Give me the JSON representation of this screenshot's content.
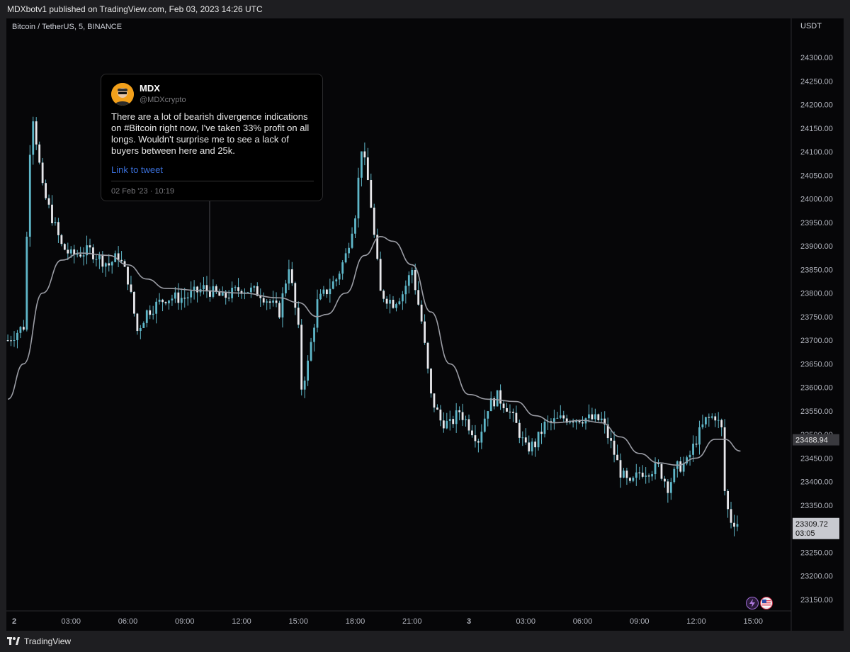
{
  "header": {
    "text": "MDXbotv1 published on TradingView.com, Feb 03, 2023 14:26 UTC"
  },
  "symbol": {
    "label": "Bitcoin / TetherUS, 5, BINANCE"
  },
  "tweet": {
    "name": "MDX",
    "handle": "@MDXcrypto",
    "body": "There are a lot of bearish divergence indications on #Bitcoin right now, I've taken 33% profit on all longs. Wouldn't surprise me to see a lack of buyers between here and 25k.",
    "link": "Link to tweet",
    "date": "02 Feb '23 · 10:19"
  },
  "footer": {
    "logo": "TradingView"
  },
  "colors": {
    "candle": "#5fb7c9",
    "ma_line": "#9a9ca4",
    "background": "#060608",
    "price_tag": "#c8cad0"
  },
  "chart_data": {
    "type": "candlestick",
    "title": "Bitcoin / TetherUS, 5, BINANCE",
    "y_axis_unit": "USDT",
    "ylim": [
      23125,
      24340
    ],
    "y_ticks": [
      "24300.00",
      "24250.00",
      "24200.00",
      "24150.00",
      "24100.00",
      "24050.00",
      "24000.00",
      "23950.00",
      "23900.00",
      "23850.00",
      "23800.00",
      "23750.00",
      "23700.00",
      "23650.00",
      "23600.00",
      "23550.00",
      "23500.00",
      "23450.00",
      "23400.00",
      "23350.00",
      "23300.00",
      "23250.00",
      "23200.00",
      "23150.00"
    ],
    "x_ticks": [
      {
        "label": "2",
        "time": "02-00:00",
        "bold": true
      },
      {
        "label": "03:00",
        "time": "02-03:00"
      },
      {
        "label": "06:00",
        "time": "02-06:00"
      },
      {
        "label": "09:00",
        "time": "02-09:00"
      },
      {
        "label": "12:00",
        "time": "02-12:00"
      },
      {
        "label": "15:00",
        "time": "02-15:00"
      },
      {
        "label": "18:00",
        "time": "02-18:00"
      },
      {
        "label": "21:00",
        "time": "02-21:00"
      },
      {
        "label": "3",
        "time": "03-00:00",
        "bold": true
      },
      {
        "label": "03:00",
        "time": "03-03:00"
      },
      {
        "label": "06:00",
        "time": "03-06:00"
      },
      {
        "label": "09:00",
        "time": "03-09:00"
      },
      {
        "label": "12:00",
        "time": "03-12:00"
      },
      {
        "label": "15:00",
        "time": "03-15:00"
      }
    ],
    "price_path": [
      [
        "01-23:40",
        23700
      ],
      [
        "02-00:30",
        23730
      ],
      [
        "02-00:55",
        24200
      ],
      [
        "02-01:05",
        24150
      ],
      [
        "02-01:30",
        24020
      ],
      [
        "02-02:30",
        23900
      ],
      [
        "02-03:00",
        23880
      ],
      [
        "02-04:00",
        23890
      ],
      [
        "02-05:00",
        23860
      ],
      [
        "02-05:30",
        23880
      ],
      [
        "02-06:00",
        23830
      ],
      [
        "02-06:30",
        23720
      ],
      [
        "02-07:00",
        23760
      ],
      [
        "02-08:00",
        23790
      ],
      [
        "02-09:00",
        23790
      ],
      [
        "02-10:00",
        23810
      ],
      [
        "02-10:19",
        23805
      ],
      [
        "02-11:00",
        23790
      ],
      [
        "02-12:00",
        23810
      ],
      [
        "02-13:00",
        23800
      ],
      [
        "02-14:00",
        23760
      ],
      [
        "02-14:30",
        23860
      ],
      [
        "02-15:00",
        23720
      ],
      [
        "02-15:10",
        23600
      ],
      [
        "02-15:30",
        23650
      ],
      [
        "02-16:00",
        23780
      ],
      [
        "02-17:00",
        23830
      ],
      [
        "02-17:30",
        23880
      ],
      [
        "02-18:00",
        23970
      ],
      [
        "02-18:20",
        24110
      ],
      [
        "02-18:45",
        24020
      ],
      [
        "02-19:00",
        23920
      ],
      [
        "02-19:20",
        23800
      ],
      [
        "02-20:00",
        23780
      ],
      [
        "02-20:30",
        23800
      ],
      [
        "02-21:00",
        23850
      ],
      [
        "02-21:30",
        23740
      ],
      [
        "02-22:00",
        23580
      ],
      [
        "02-22:30",
        23530
      ],
      [
        "02-23:00",
        23520
      ],
      [
        "02-23:30",
        23550
      ],
      [
        "03-00:30",
        23490
      ],
      [
        "03-01:00",
        23560
      ],
      [
        "03-01:30",
        23580
      ],
      [
        "03-02:00",
        23560
      ],
      [
        "03-02:30",
        23520
      ],
      [
        "03-03:00",
        23470
      ],
      [
        "03-03:30",
        23480
      ],
      [
        "03-04:00",
        23520
      ],
      [
        "03-05:00",
        23535
      ],
      [
        "03-06:00",
        23535
      ],
      [
        "03-07:00",
        23530
      ],
      [
        "03-07:30",
        23480
      ],
      [
        "03-08:00",
        23420
      ],
      [
        "03-08:30",
        23390
      ],
      [
        "03-09:00",
        23420
      ],
      [
        "03-10:00",
        23430
      ],
      [
        "03-10:30",
        23390
      ],
      [
        "03-11:00",
        23430
      ],
      [
        "03-11:30",
        23440
      ],
      [
        "03-12:00",
        23490
      ],
      [
        "03-12:30",
        23530
      ],
      [
        "03-13:00",
        23540
      ],
      [
        "03-13:20",
        23510
      ],
      [
        "03-13:30",
        23380
      ],
      [
        "03-13:45",
        23320
      ],
      [
        "03-14:20",
        23310
      ]
    ],
    "moving_average": [
      [
        "01-23:40",
        23575
      ],
      [
        "02-00:30",
        23650
      ],
      [
        "02-01:30",
        23800
      ],
      [
        "02-02:30",
        23870
      ],
      [
        "02-03:30",
        23885
      ],
      [
        "02-05:00",
        23880
      ],
      [
        "02-06:00",
        23860
      ],
      [
        "02-07:00",
        23830
      ],
      [
        "02-08:00",
        23810
      ],
      [
        "02-10:00",
        23805
      ],
      [
        "02-12:00",
        23800
      ],
      [
        "02-14:00",
        23790
      ],
      [
        "02-15:00",
        23780
      ],
      [
        "02-16:00",
        23750
      ],
      [
        "02-16:30",
        23755
      ],
      [
        "02-17:30",
        23800
      ],
      [
        "02-18:30",
        23880
      ],
      [
        "02-19:20",
        23920
      ],
      [
        "02-20:00",
        23910
      ],
      [
        "02-21:00",
        23860
      ],
      [
        "02-22:00",
        23760
      ],
      [
        "02-23:00",
        23650
      ],
      [
        "03-00:00",
        23585
      ],
      [
        "03-01:00",
        23575
      ],
      [
        "03-02:30",
        23570
      ],
      [
        "03-03:30",
        23540
      ],
      [
        "03-04:30",
        23525
      ],
      [
        "03-06:00",
        23530
      ],
      [
        "03-07:00",
        23525
      ],
      [
        "03-08:00",
        23495
      ],
      [
        "03-09:00",
        23460
      ],
      [
        "03-10:00",
        23440
      ],
      [
        "03-11:00",
        23435
      ],
      [
        "03-12:00",
        23450
      ],
      [
        "03-13:00",
        23490
      ],
      [
        "03-13:30",
        23490
      ],
      [
        "03-14:20",
        23465
      ]
    ],
    "current_price_tag": "23488.94",
    "last_price_tag": "23309.72",
    "countdown": "03:05",
    "tweet_time": "02-10:19"
  }
}
